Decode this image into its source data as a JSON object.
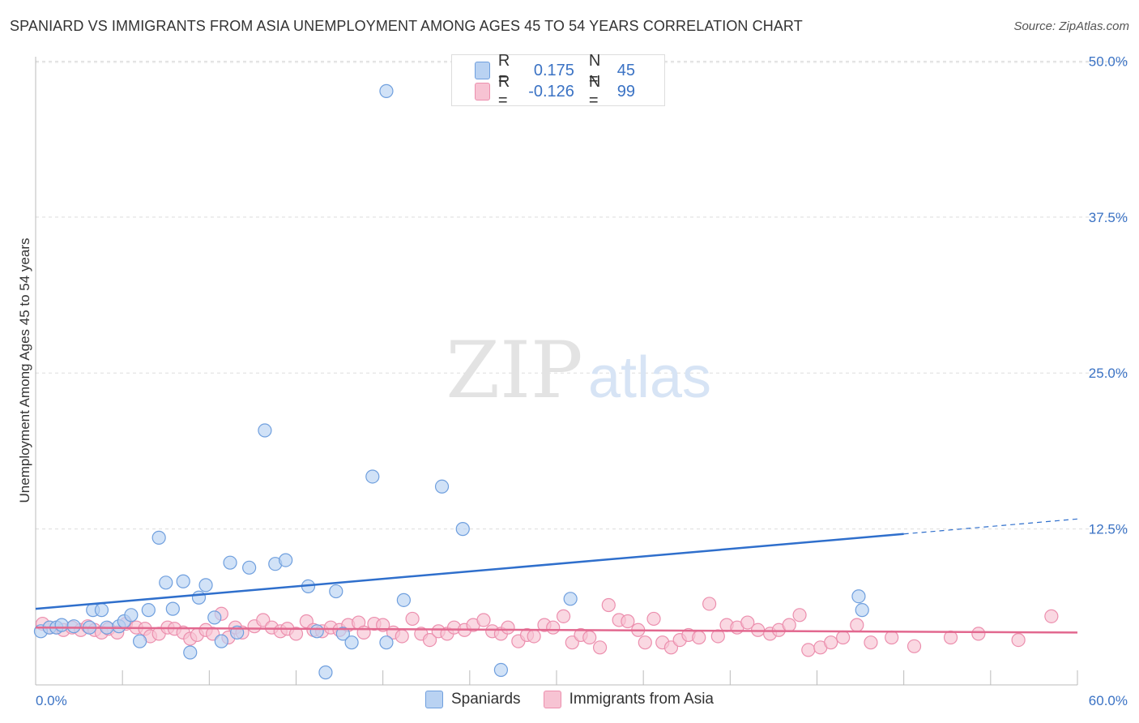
{
  "header": {
    "title": "SPANIARD VS IMMIGRANTS FROM ASIA UNEMPLOYMENT AMONG AGES 45 TO 54 YEARS CORRELATION CHART",
    "source": "Source: ZipAtlas.com"
  },
  "watermark": {
    "zip": "ZIP",
    "atlas": "atlas"
  },
  "legend": {
    "spaniards": {
      "r_label": "R =",
      "r_value": "0.175",
      "n_label": "N =",
      "n_value": "45"
    },
    "asia": {
      "r_label": "R =",
      "r_value": "-0.126",
      "n_label": "N =",
      "n_value": "99"
    }
  },
  "bottom_legend": {
    "spaniards": "Spaniards",
    "asia": "Immigrants from Asia"
  },
  "colors": {
    "blue_fill": "#b9d2f2",
    "blue_stroke": "#6f9fde",
    "blue_line": "#2f6fcc",
    "pink_fill": "#f7c3d3",
    "pink_stroke": "#ec8fae",
    "pink_line": "#e2688f",
    "axis_label": "#3a72c4",
    "grid": "#dddddd"
  },
  "chart_data": {
    "type": "scatter",
    "xlabel": "",
    "ylabel": "Unemployment Among Ages 45 to 54 years",
    "xlim": [
      0,
      60
    ],
    "ylim": [
      0,
      52
    ],
    "x_tick_labels": [
      "0.0%",
      "60.0%"
    ],
    "y_ticks": [
      12.5,
      25.0,
      37.5,
      50.0
    ],
    "y_tick_labels": [
      "12.5%",
      "25.0%",
      "37.5%",
      "50.0%"
    ],
    "grid": true,
    "series": [
      {
        "name": "Spaniards",
        "trend": {
          "x0": 0,
          "y0": 6.1,
          "x1": 50,
          "y1": 12.1,
          "dashed_to_x": 60,
          "dashed_to_y": 13.3
        },
        "points": [
          [
            0.3,
            4.3
          ],
          [
            0.8,
            4.6
          ],
          [
            1.2,
            4.6
          ],
          [
            1.5,
            4.8
          ],
          [
            2.2,
            4.7
          ],
          [
            3.1,
            4.6
          ],
          [
            3.3,
            6.0
          ],
          [
            3.8,
            6.0
          ],
          [
            4.1,
            4.6
          ],
          [
            4.8,
            4.7
          ],
          [
            5.1,
            5.1
          ],
          [
            5.5,
            5.6
          ],
          [
            6.0,
            3.5
          ],
          [
            6.5,
            6.0
          ],
          [
            7.1,
            11.8
          ],
          [
            7.5,
            8.2
          ],
          [
            7.9,
            6.1
          ],
          [
            8.5,
            8.3
          ],
          [
            8.9,
            2.6
          ],
          [
            9.4,
            7.0
          ],
          [
            9.8,
            8.0
          ],
          [
            10.3,
            5.4
          ],
          [
            10.7,
            3.5
          ],
          [
            11.2,
            9.8
          ],
          [
            11.6,
            4.2
          ],
          [
            12.3,
            9.4
          ],
          [
            13.2,
            20.4
          ],
          [
            13.8,
            9.7
          ],
          [
            14.4,
            10.0
          ],
          [
            15.7,
            7.9
          ],
          [
            16.2,
            4.3
          ],
          [
            16.7,
            1.0
          ],
          [
            17.3,
            7.5
          ],
          [
            17.7,
            4.1
          ],
          [
            18.2,
            3.4
          ],
          [
            19.4,
            16.7
          ],
          [
            20.2,
            47.6
          ],
          [
            20.2,
            3.4
          ],
          [
            21.2,
            6.8
          ],
          [
            23.4,
            15.9
          ],
          [
            24.6,
            12.5
          ],
          [
            26.8,
            1.2
          ],
          [
            30.8,
            6.9
          ],
          [
            47.4,
            7.1
          ],
          [
            47.6,
            6.0
          ]
        ]
      },
      {
        "name": "Immigrants from Asia",
        "trend": {
          "x0": 0,
          "y0": 4.6,
          "x1": 60,
          "y1": 4.2
        },
        "points": [
          [
            0.4,
            4.9
          ],
          [
            0.8,
            4.6
          ],
          [
            1.2,
            4.6
          ],
          [
            1.6,
            4.4
          ],
          [
            2.1,
            4.6
          ],
          [
            2.6,
            4.4
          ],
          [
            3.0,
            4.7
          ],
          [
            3.4,
            4.4
          ],
          [
            3.8,
            4.2
          ],
          [
            4.2,
            4.5
          ],
          [
            4.7,
            4.2
          ],
          [
            5.2,
            4.9
          ],
          [
            5.8,
            4.6
          ],
          [
            6.3,
            4.5
          ],
          [
            6.6,
            3.9
          ],
          [
            7.1,
            4.1
          ],
          [
            7.6,
            4.6
          ],
          [
            8.0,
            4.5
          ],
          [
            8.5,
            4.2
          ],
          [
            8.9,
            3.7
          ],
          [
            9.3,
            4.0
          ],
          [
            9.8,
            4.4
          ],
          [
            10.2,
            4.1
          ],
          [
            10.7,
            5.7
          ],
          [
            11.1,
            3.8
          ],
          [
            11.5,
            4.6
          ],
          [
            11.9,
            4.2
          ],
          [
            12.6,
            4.7
          ],
          [
            13.1,
            5.2
          ],
          [
            13.6,
            4.6
          ],
          [
            14.1,
            4.3
          ],
          [
            14.5,
            4.5
          ],
          [
            15.0,
            4.1
          ],
          [
            15.6,
            5.1
          ],
          [
            16.0,
            4.4
          ],
          [
            16.5,
            4.3
          ],
          [
            17.0,
            4.6
          ],
          [
            17.5,
            4.4
          ],
          [
            18.0,
            4.8
          ],
          [
            18.6,
            5.0
          ],
          [
            18.9,
            4.2
          ],
          [
            19.5,
            4.9
          ],
          [
            20.0,
            4.8
          ],
          [
            20.6,
            4.2
          ],
          [
            21.1,
            3.9
          ],
          [
            21.7,
            5.3
          ],
          [
            22.2,
            4.1
          ],
          [
            22.7,
            3.6
          ],
          [
            23.2,
            4.3
          ],
          [
            23.7,
            4.1
          ],
          [
            24.1,
            4.6
          ],
          [
            24.7,
            4.4
          ],
          [
            25.2,
            4.8
          ],
          [
            25.8,
            5.2
          ],
          [
            26.3,
            4.3
          ],
          [
            26.8,
            4.1
          ],
          [
            27.2,
            4.6
          ],
          [
            27.8,
            3.5
          ],
          [
            28.3,
            4.0
          ],
          [
            28.7,
            3.9
          ],
          [
            29.3,
            4.8
          ],
          [
            29.8,
            4.6
          ],
          [
            30.4,
            5.5
          ],
          [
            30.9,
            3.4
          ],
          [
            31.4,
            4.0
          ],
          [
            31.9,
            3.8
          ],
          [
            32.5,
            3.0
          ],
          [
            33.0,
            6.4
          ],
          [
            33.6,
            5.2
          ],
          [
            34.1,
            5.1
          ],
          [
            34.7,
            4.4
          ],
          [
            35.1,
            3.4
          ],
          [
            35.6,
            5.3
          ],
          [
            36.1,
            3.4
          ],
          [
            36.6,
            3.0
          ],
          [
            37.1,
            3.6
          ],
          [
            37.6,
            4.0
          ],
          [
            38.2,
            3.8
          ],
          [
            38.8,
            6.5
          ],
          [
            39.3,
            3.9
          ],
          [
            39.8,
            4.8
          ],
          [
            40.4,
            4.6
          ],
          [
            41.0,
            5.0
          ],
          [
            41.6,
            4.4
          ],
          [
            42.3,
            4.1
          ],
          [
            42.8,
            4.4
          ],
          [
            43.4,
            4.8
          ],
          [
            44.0,
            5.6
          ],
          [
            44.5,
            2.8
          ],
          [
            45.2,
            3.0
          ],
          [
            45.8,
            3.4
          ],
          [
            46.5,
            3.8
          ],
          [
            47.3,
            4.8
          ],
          [
            48.1,
            3.4
          ],
          [
            49.3,
            3.8
          ],
          [
            50.6,
            3.1
          ],
          [
            52.7,
            3.8
          ],
          [
            54.3,
            4.1
          ],
          [
            56.6,
            3.6
          ],
          [
            58.5,
            5.5
          ]
        ]
      }
    ]
  }
}
